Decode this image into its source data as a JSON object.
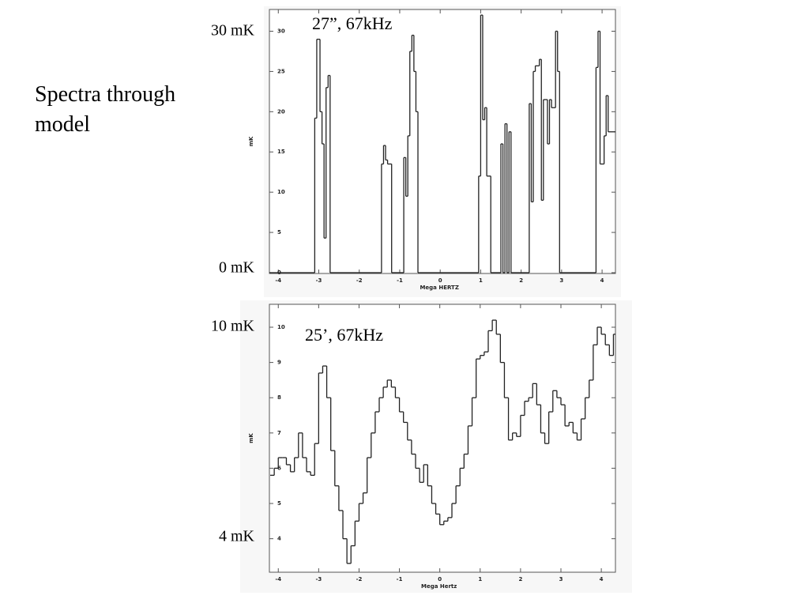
{
  "title": "Spectra through model",
  "chart_data": [
    {
      "type": "step",
      "annotation": "27”, 67kHz",
      "side_labels": [
        "30 mK",
        "0 mK"
      ],
      "xlabel": "Mega HERTZ",
      "ylabel": "mK",
      "color": "#222222",
      "xlim": [
        -4.22,
        4.33
      ],
      "ylim": [
        -0.1,
        32.7
      ],
      "xticks": [
        -4,
        -3,
        -2,
        -1,
        0,
        1,
        2,
        3,
        4
      ],
      "yticks": [
        0,
        5,
        10,
        15,
        20,
        25,
        30
      ],
      "x": [
        -4.22,
        -3.1,
        -3.05,
        -2.97,
        -2.92,
        -2.87,
        -2.82,
        -2.77,
        -2.72,
        -1.45,
        -1.4,
        -1.35,
        -1.3,
        -1.2,
        -0.9,
        -0.85,
        -0.8,
        -0.75,
        -0.7,
        -0.65,
        -0.6,
        -0.55,
        0.95,
        1.0,
        1.05,
        1.1,
        1.15,
        1.25,
        1.5,
        1.55,
        1.6,
        1.65,
        1.7,
        1.75,
        2.2,
        2.25,
        2.3,
        2.35,
        2.45,
        2.5,
        2.55,
        2.65,
        2.7,
        2.75,
        2.85,
        2.9,
        2.95,
        3.85,
        3.9,
        3.95,
        4.05,
        4.1,
        4.15
      ],
      "values": [
        0,
        19.2,
        29,
        20,
        16,
        4.3,
        23,
        24.5,
        0,
        13.5,
        15.8,
        14,
        13.5,
        0,
        14.3,
        9.5,
        17,
        27.5,
        29.5,
        25,
        20,
        0,
        12,
        32,
        19,
        20.5,
        12,
        0,
        16,
        0,
        18.5,
        0,
        17.5,
        0,
        21,
        8.8,
        25,
        25.7,
        26.5,
        9,
        21.5,
        16,
        21.5,
        20.5,
        30,
        25,
        0,
        25.5,
        30,
        13.5,
        17,
        22,
        17.5
      ]
    },
    {
      "type": "step",
      "annotation": "25’, 67kHz",
      "side_labels": [
        "10 mK",
        "4 mK"
      ],
      "xlabel": "Mega Hertz",
      "ylabel": "mK",
      "color": "#222222",
      "xlim": [
        -4.22,
        4.35
      ],
      "ylim": [
        3.05,
        10.65
      ],
      "xticks": [
        -4,
        -3,
        -2,
        -1,
        0,
        1,
        2,
        3,
        4
      ],
      "yticks": [
        4,
        5,
        6,
        7,
        8,
        9,
        10
      ],
      "x": [
        -4.2,
        -4.1,
        -4.0,
        -3.9,
        -3.8,
        -3.7,
        -3.6,
        -3.5,
        -3.4,
        -3.3,
        -3.2,
        -3.1,
        -3.0,
        -2.9,
        -2.8,
        -2.7,
        -2.6,
        -2.5,
        -2.4,
        -2.3,
        -2.2,
        -2.1,
        -2.0,
        -1.9,
        -1.8,
        -1.7,
        -1.6,
        -1.5,
        -1.4,
        -1.3,
        -1.2,
        -1.1,
        -1.0,
        -0.9,
        -0.8,
        -0.7,
        -0.6,
        -0.5,
        -0.4,
        -0.3,
        -0.2,
        -0.1,
        0.0,
        0.1,
        0.2,
        0.3,
        0.4,
        0.5,
        0.6,
        0.7,
        0.8,
        0.9,
        1.0,
        1.1,
        1.2,
        1.3,
        1.4,
        1.5,
        1.6,
        1.7,
        1.8,
        1.9,
        2.0,
        2.1,
        2.2,
        2.3,
        2.4,
        2.5,
        2.6,
        2.7,
        2.8,
        2.9,
        3.0,
        3.1,
        3.2,
        3.3,
        3.4,
        3.5,
        3.6,
        3.7,
        3.8,
        3.9,
        4.0,
        4.1,
        4.2,
        4.3
      ],
      "values": [
        5.8,
        6.0,
        6.3,
        6.3,
        6.1,
        5.9,
        6.3,
        7.0,
        6.3,
        5.9,
        5.8,
        6.7,
        8.7,
        8.9,
        8.0,
        6.5,
        5.5,
        4.8,
        4.0,
        3.3,
        3.8,
        4.5,
        5.0,
        5.3,
        6.3,
        7.0,
        7.6,
        8.0,
        8.3,
        8.5,
        8.3,
        8.0,
        7.6,
        7.3,
        6.8,
        6.4,
        6.0,
        5.6,
        6.1,
        5.5,
        5.0,
        4.7,
        4.4,
        4.5,
        4.6,
        5.0,
        5.5,
        6.0,
        6.4,
        7.2,
        8.0,
        9.1,
        9.2,
        9.3,
        9.9,
        10.2,
        9.8,
        9.0,
        8.0,
        6.8,
        7.0,
        6.9,
        7.5,
        7.9,
        8.0,
        8.4,
        7.8,
        7.0,
        6.7,
        7.6,
        8.2,
        8.0,
        7.8,
        7.2,
        7.3,
        7.0,
        6.8,
        7.4,
        8.0,
        8.5,
        9.5,
        10.0,
        9.8,
        9.5,
        9.2,
        9.8
      ]
    }
  ]
}
